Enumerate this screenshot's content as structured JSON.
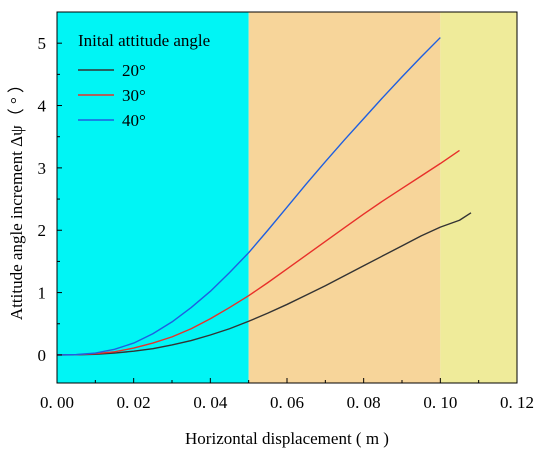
{
  "chart_data": {
    "type": "line",
    "xlabel": "Horizontal displacement ( m )",
    "ylabel": "Attitude angle increment Δψ（ ° ）",
    "xlim": [
      0,
      0.12
    ],
    "ylim": [
      -0.45,
      5.5
    ],
    "x_ticks": [
      0.0,
      0.02,
      0.04,
      0.06,
      0.08,
      0.1,
      0.12
    ],
    "x_tick_labels": [
      "0. 00",
      "0. 02",
      "0. 04",
      "0. 06",
      "0. 08",
      "0. 10",
      "0. 12"
    ],
    "y_ticks": [
      0,
      1,
      2,
      3,
      4,
      5
    ],
    "y_tick_labels": [
      "0",
      "1",
      "2",
      "3",
      "4",
      "5"
    ],
    "grid": false,
    "legend": {
      "title": "Inital attitude angle",
      "placement": "top-left"
    },
    "background_regions": [
      {
        "x_from": 0.0,
        "x_to": 0.05,
        "color": "#00f5f5"
      },
      {
        "x_from": 0.05,
        "x_to": 0.1,
        "color": "#f7d59a"
      },
      {
        "x_from": 0.1,
        "x_to": 0.12,
        "color": "#efeb9a"
      }
    ],
    "series": [
      {
        "name": "20°",
        "color": "#333333",
        "x": [
          0.0,
          0.005,
          0.01,
          0.015,
          0.02,
          0.025,
          0.03,
          0.035,
          0.04,
          0.045,
          0.05,
          0.055,
          0.06,
          0.065,
          0.07,
          0.075,
          0.08,
          0.085,
          0.09,
          0.095,
          0.1,
          0.105,
          0.108
        ],
        "y": [
          0.0,
          0.002,
          0.01,
          0.03,
          0.06,
          0.1,
          0.16,
          0.23,
          0.32,
          0.42,
          0.54,
          0.67,
          0.81,
          0.96,
          1.11,
          1.27,
          1.43,
          1.59,
          1.75,
          1.91,
          2.05,
          2.16,
          2.28
        ]
      },
      {
        "name": "30°",
        "color": "#e8302a",
        "x": [
          0.0,
          0.005,
          0.01,
          0.015,
          0.02,
          0.025,
          0.03,
          0.035,
          0.04,
          0.045,
          0.05,
          0.055,
          0.06,
          0.065,
          0.07,
          0.075,
          0.08,
          0.085,
          0.09,
          0.095,
          0.1,
          0.105
        ],
        "y": [
          0.0,
          0.003,
          0.02,
          0.05,
          0.11,
          0.19,
          0.29,
          0.42,
          0.58,
          0.76,
          0.95,
          1.16,
          1.38,
          1.6,
          1.82,
          2.04,
          2.26,
          2.47,
          2.67,
          2.87,
          3.07,
          3.28
        ]
      },
      {
        "name": "40°",
        "color": "#1f5fe0",
        "x": [
          0.0,
          0.005,
          0.01,
          0.015,
          0.02,
          0.025,
          0.03,
          0.035,
          0.04,
          0.045,
          0.05,
          0.055,
          0.06,
          0.065,
          0.07,
          0.075,
          0.08,
          0.085,
          0.09,
          0.095,
          0.1
        ],
        "y": [
          0.0,
          0.005,
          0.03,
          0.09,
          0.19,
          0.34,
          0.53,
          0.76,
          1.02,
          1.32,
          1.64,
          2.0,
          2.37,
          2.74,
          3.1,
          3.45,
          3.79,
          4.13,
          4.46,
          4.78,
          5.09
        ]
      }
    ]
  }
}
